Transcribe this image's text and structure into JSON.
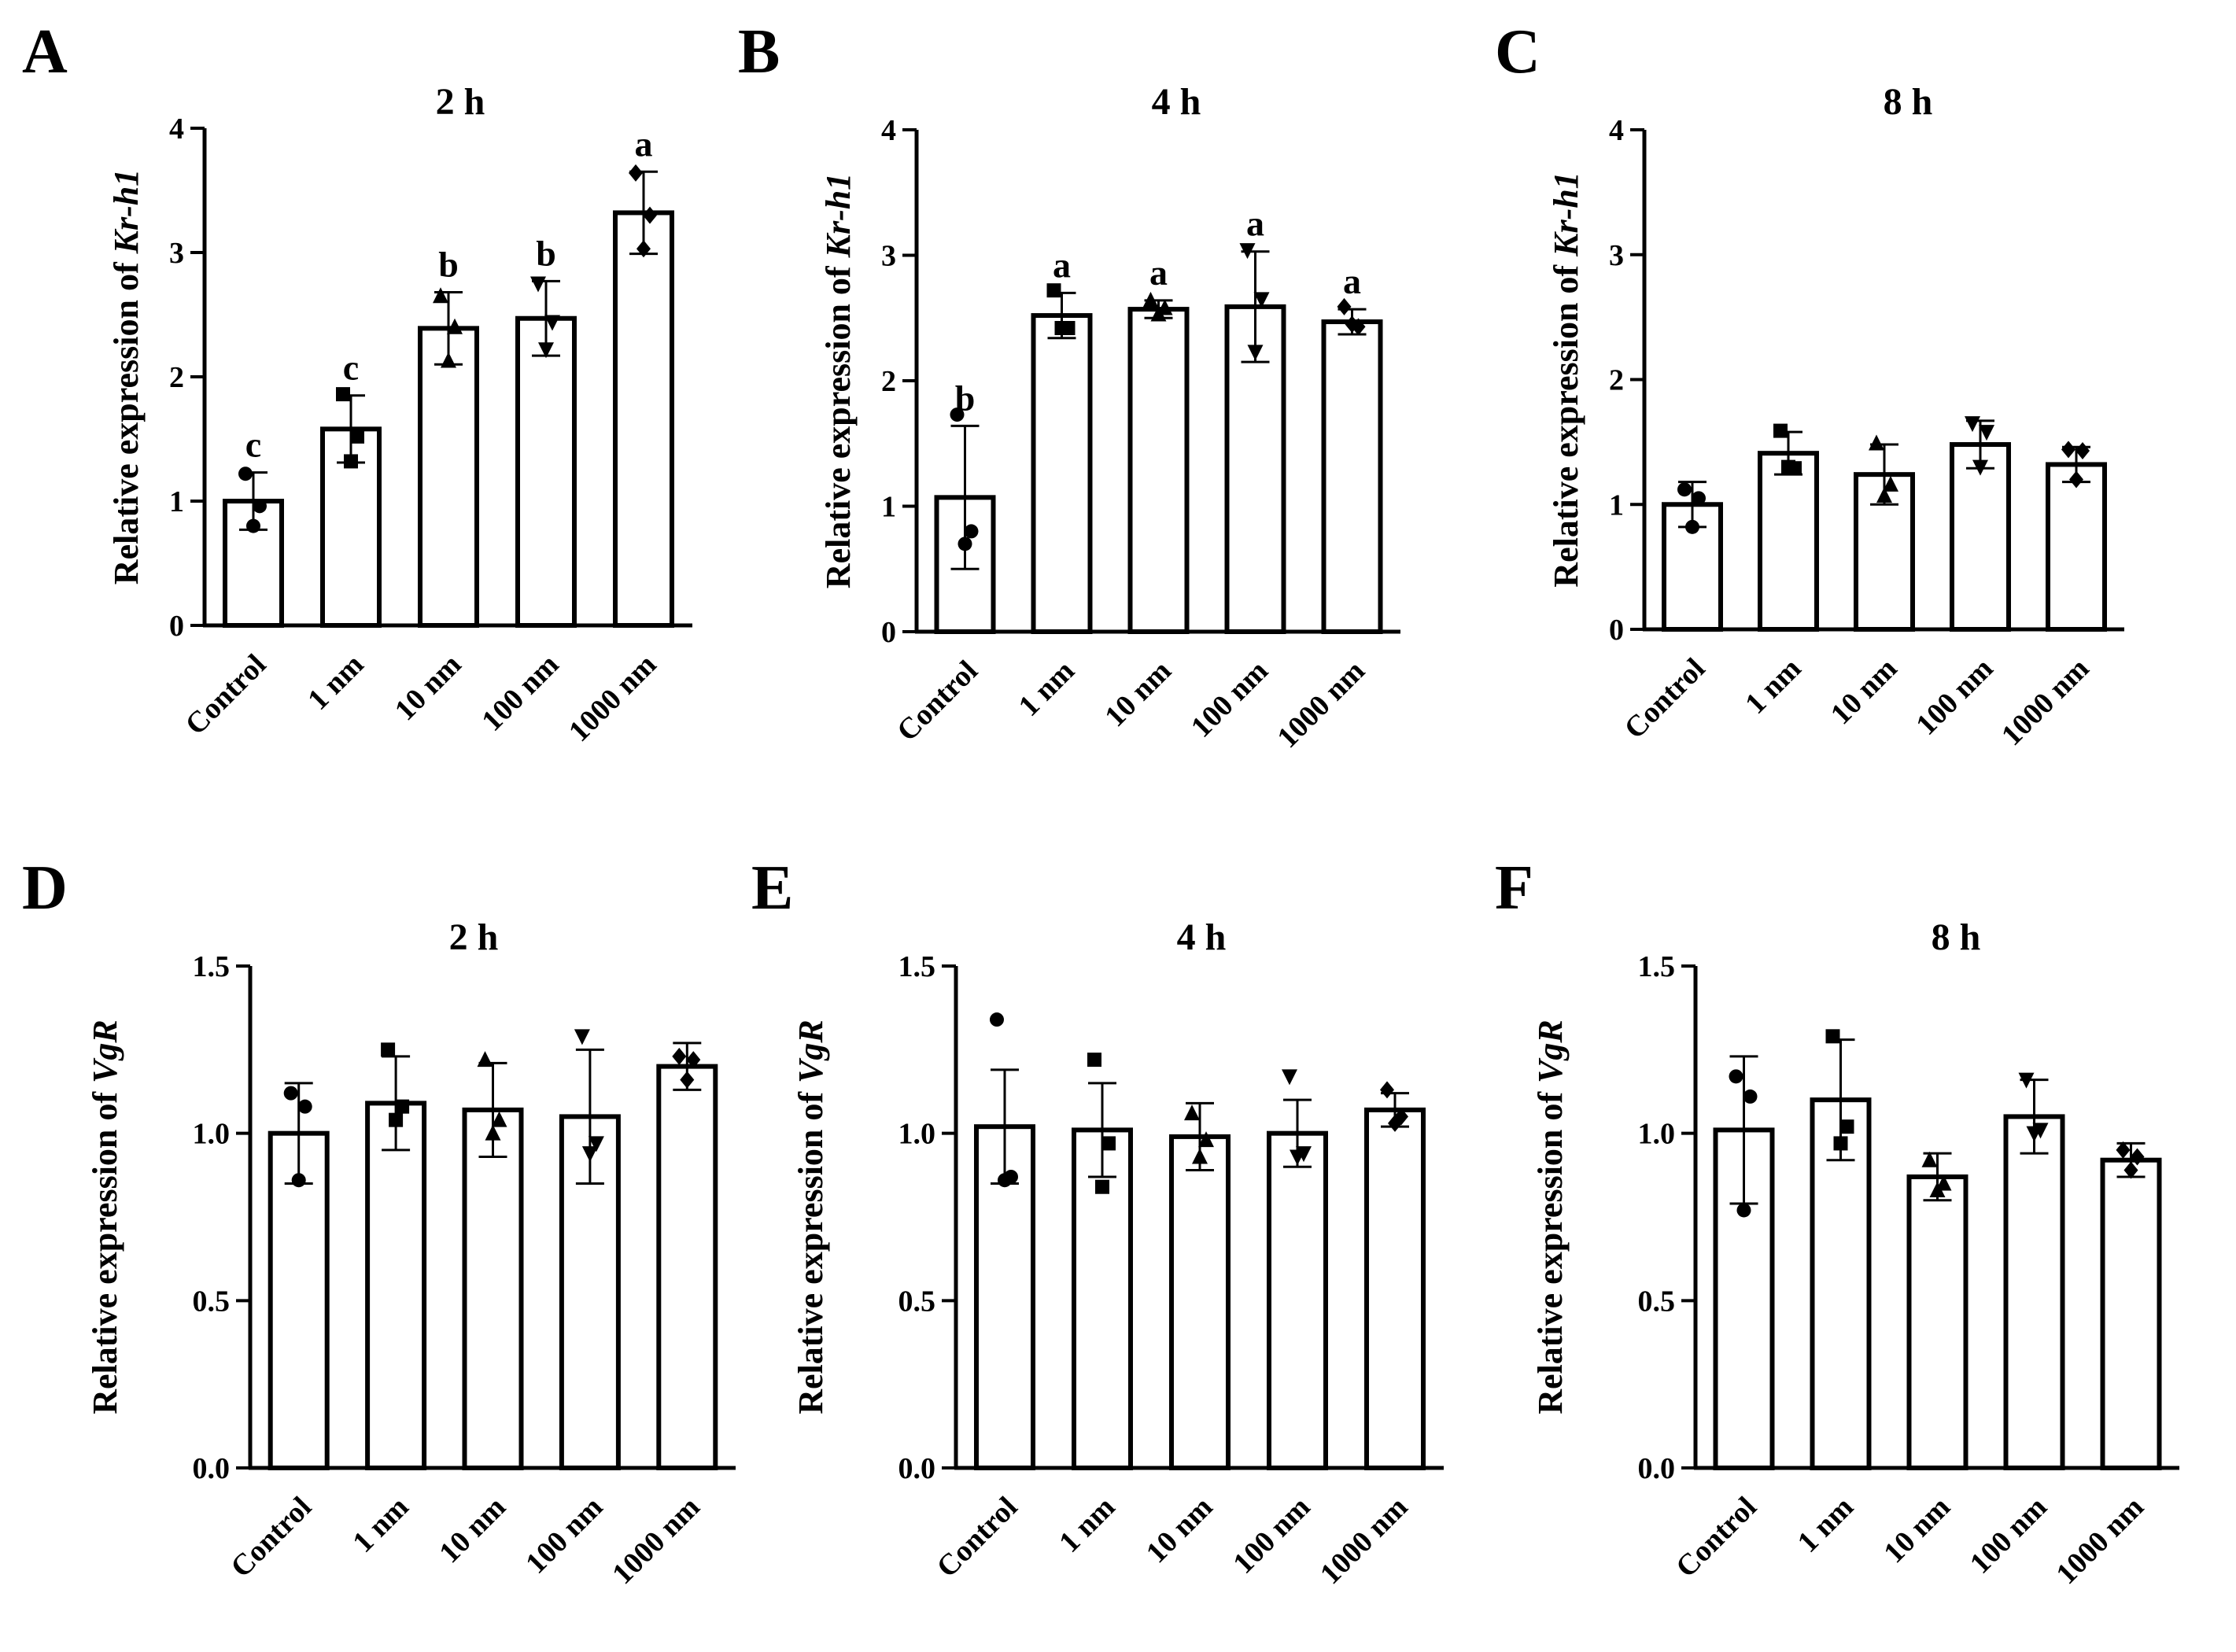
{
  "figure": {
    "description_hidden": ""
  },
  "chart_data": [
    {
      "panel": "A",
      "type": "bar",
      "title": "2 h",
      "ylabel_prefix": "Relative expression of ",
      "ylabel_gene": "Kr-h1",
      "categories": [
        "Control",
        "1 nm",
        "10 nm",
        "100 nm",
        "1000 nm"
      ],
      "values": [
        1.0,
        1.58,
        2.39,
        2.47,
        3.32
      ],
      "errors": [
        0.23,
        0.27,
        0.29,
        0.3,
        0.33
      ],
      "letters": [
        "c",
        "c",
        "b",
        "b",
        "a"
      ],
      "points": [
        [
          1.22,
          0.96,
          0.8
        ],
        [
          1.86,
          1.52,
          1.32
        ],
        [
          2.65,
          2.4,
          2.13
        ],
        [
          2.75,
          2.44,
          2.22
        ],
        [
          3.64,
          3.3,
          3.03
        ]
      ],
      "markers": [
        "circle",
        "square",
        "triangle-up",
        "triangle-down",
        "diamond"
      ],
      "yticks": [
        "0",
        "1",
        "2",
        "3",
        "4"
      ],
      "ylim": [
        0,
        4
      ]
    },
    {
      "panel": "B",
      "type": "bar",
      "title": "4 h",
      "ylabel_prefix": "Relative expression of ",
      "ylabel_gene": "Kr-h1",
      "categories": [
        "Control",
        "1 nm",
        "10 nm",
        "100 nm",
        "1000 nm"
      ],
      "values": [
        1.07,
        2.52,
        2.57,
        2.59,
        2.47
      ],
      "errors": [
        0.57,
        0.18,
        0.07,
        0.44,
        0.1
      ],
      "letters": [
        "b",
        "a",
        "a",
        "a",
        "a"
      ],
      "points": [
        [
          1.73,
          0.8,
          0.7
        ],
        [
          2.72,
          2.42,
          2.42
        ],
        [
          2.64,
          2.58,
          2.53
        ],
        [
          3.04,
          2.65,
          2.23
        ],
        [
          2.59,
          2.43,
          2.45
        ]
      ],
      "markers": [
        "circle",
        "square",
        "triangle-up",
        "triangle-down",
        "diamond"
      ],
      "yticks": [
        "0",
        "1",
        "2",
        "3",
        "4"
      ],
      "ylim": [
        0,
        4
      ]
    },
    {
      "panel": "C",
      "type": "bar",
      "title": "8 h",
      "ylabel_prefix": "Relative expression of ",
      "ylabel_gene": "Kr-h1",
      "categories": [
        "Control",
        "1 nm",
        "10 nm",
        "100 nm",
        "1000 nm"
      ],
      "values": [
        1.0,
        1.41,
        1.24,
        1.48,
        1.32
      ],
      "errors": [
        0.18,
        0.17,
        0.24,
        0.19,
        0.14
      ],
      "letters": [
        "",
        "",
        "",
        "",
        ""
      ],
      "points": [
        [
          1.12,
          1.05,
          0.82
        ],
        [
          1.59,
          1.29,
          1.3
        ],
        [
          1.49,
          1.16,
          1.07
        ],
        [
          1.65,
          1.58,
          1.3
        ],
        [
          1.44,
          1.43,
          1.2
        ]
      ],
      "markers": [
        "circle",
        "square",
        "triangle-up",
        "triangle-down",
        "diamond"
      ],
      "yticks": [
        "0",
        "1",
        "2",
        "3",
        "4"
      ],
      "ylim": [
        0,
        4
      ]
    },
    {
      "panel": "D",
      "type": "bar",
      "title": "2 h",
      "ylabel_prefix": "Relative expression of ",
      "ylabel_gene": "VgR",
      "categories": [
        "Control",
        "1 nm",
        "10 nm",
        "100 nm",
        "1000 nm"
      ],
      "values": [
        1.0,
        1.09,
        1.07,
        1.05,
        1.2
      ],
      "errors": [
        0.15,
        0.14,
        0.14,
        0.2,
        0.07
      ],
      "letters": [
        "",
        "",
        "",
        "",
        ""
      ],
      "points": [
        [
          1.12,
          1.08,
          0.86
        ],
        [
          1.25,
          1.08,
          1.04
        ],
        [
          1.22,
          1.04,
          1.0
        ],
        [
          1.29,
          0.97,
          0.94
        ],
        [
          1.23,
          1.22,
          1.16
        ]
      ],
      "markers": [
        "circle",
        "square",
        "triangle-up",
        "triangle-down",
        "diamond"
      ],
      "yticks": [
        "0.0",
        "0.5",
        "1.0",
        "1.5"
      ],
      "ylim": [
        0,
        1.5
      ]
    },
    {
      "panel": "E",
      "type": "bar",
      "title": "4 h",
      "ylabel_prefix": "Relative expression of ",
      "ylabel_gene": "VgR",
      "categories": [
        "Control",
        "1 nm",
        "10 nm",
        "100 nm",
        "1000 nm"
      ],
      "values": [
        1.02,
        1.01,
        0.99,
        1.0,
        1.07
      ],
      "errors": [
        0.17,
        0.14,
        0.1,
        0.1,
        0.05
      ],
      "letters": [
        "",
        "",
        "",
        "",
        ""
      ],
      "points": [
        [
          1.34,
          0.87,
          0.86
        ],
        [
          1.22,
          0.97,
          0.84
        ],
        [
          1.06,
          0.98,
          0.93
        ],
        [
          1.17,
          0.94,
          0.93
        ],
        [
          1.13,
          1.05,
          1.03
        ]
      ],
      "markers": [
        "circle",
        "square",
        "triangle-up",
        "triangle-down",
        "diamond"
      ],
      "yticks": [
        "0.0",
        "0.5",
        "1.0",
        "1.5"
      ],
      "ylim": [
        0,
        1.5
      ]
    },
    {
      "panel": "F",
      "type": "bar",
      "title": "8 h",
      "ylabel_prefix": "Relative expression of ",
      "ylabel_gene": "VgR",
      "categories": [
        "Control",
        "1 nm",
        "10 nm",
        "100 nm",
        "1000 nm"
      ],
      "values": [
        1.01,
        1.1,
        0.87,
        1.05,
        0.92
      ],
      "errors": [
        0.22,
        0.18,
        0.07,
        0.11,
        0.05
      ],
      "letters": [
        "",
        "",
        "",
        "",
        ""
      ],
      "points": [
        [
          1.17,
          1.11,
          0.77
        ],
        [
          1.29,
          1.02,
          0.97
        ],
        [
          0.92,
          0.85,
          0.83
        ],
        [
          1.16,
          1.01,
          1.0
        ],
        [
          0.95,
          0.93,
          0.89
        ]
      ],
      "markers": [
        "circle",
        "square",
        "triangle-up",
        "triangle-down",
        "diamond"
      ],
      "yticks": [
        "0.0",
        "0.5",
        "1.0",
        "1.5"
      ],
      "ylim": [
        0,
        1.5
      ]
    }
  ]
}
